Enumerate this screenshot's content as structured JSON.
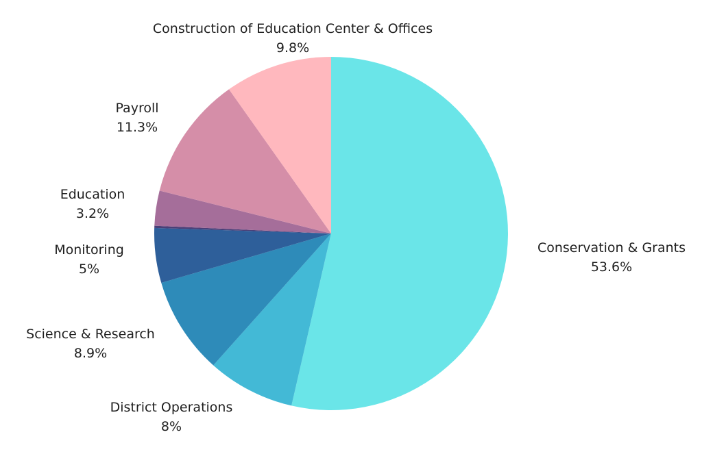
{
  "chart_data": {
    "type": "pie",
    "slices": [
      {
        "label": "Conservation & Grants",
        "value": 53.6,
        "value_label": "53.6%",
        "color": "#6ae5e8"
      },
      {
        "label": "District Operations",
        "value": 8,
        "value_label": "8%",
        "color": "#43b9d6"
      },
      {
        "label": "Science & Research",
        "value": 8.9,
        "value_label": "8.9%",
        "color": "#2e8bb9"
      },
      {
        "label": "Monitoring",
        "value": 5,
        "value_label": "5%",
        "color": "#2e5f9a"
      },
      {
        "label": "",
        "value": 0.2,
        "value_label": "",
        "color": "#4a3f78"
      },
      {
        "label": "Education",
        "value": 3.2,
        "value_label": "3.2%",
        "color": "#a56e9a"
      },
      {
        "label": "Payroll",
        "value": 11.3,
        "value_label": "11.3%",
        "color": "#d58ea8"
      },
      {
        "label": "Construction of Education Center & Offices",
        "value": 9.8,
        "value_label": "9.8%",
        "color": "#ffb8be"
      }
    ],
    "start": "12 o'clock",
    "direction": "clockwise",
    "legend": "none"
  }
}
